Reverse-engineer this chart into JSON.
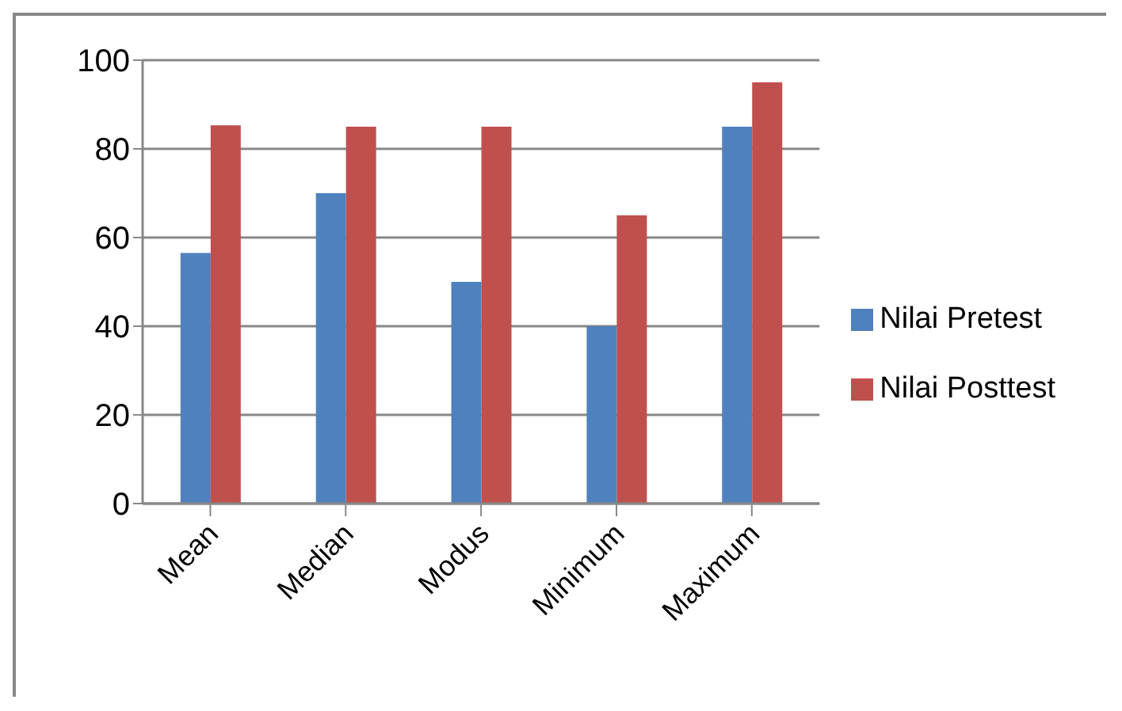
{
  "chart_data": {
    "type": "bar",
    "categories": [
      "Mean",
      "Median",
      "Modus",
      "Minimum",
      "Maximum"
    ],
    "series": [
      {
        "name": "Nilai Pretest",
        "color": "#4f81bd",
        "values": [
          56.5,
          70,
          50,
          40,
          85
        ]
      },
      {
        "name": "Nilai Posttest",
        "color": "#c0504d",
        "values": [
          85.3,
          85,
          85,
          65,
          95
        ]
      }
    ],
    "ylim": [
      0,
      100
    ],
    "yticks": [
      0,
      20,
      40,
      60,
      80,
      100
    ],
    "grid": "y",
    "legend": "right"
  }
}
